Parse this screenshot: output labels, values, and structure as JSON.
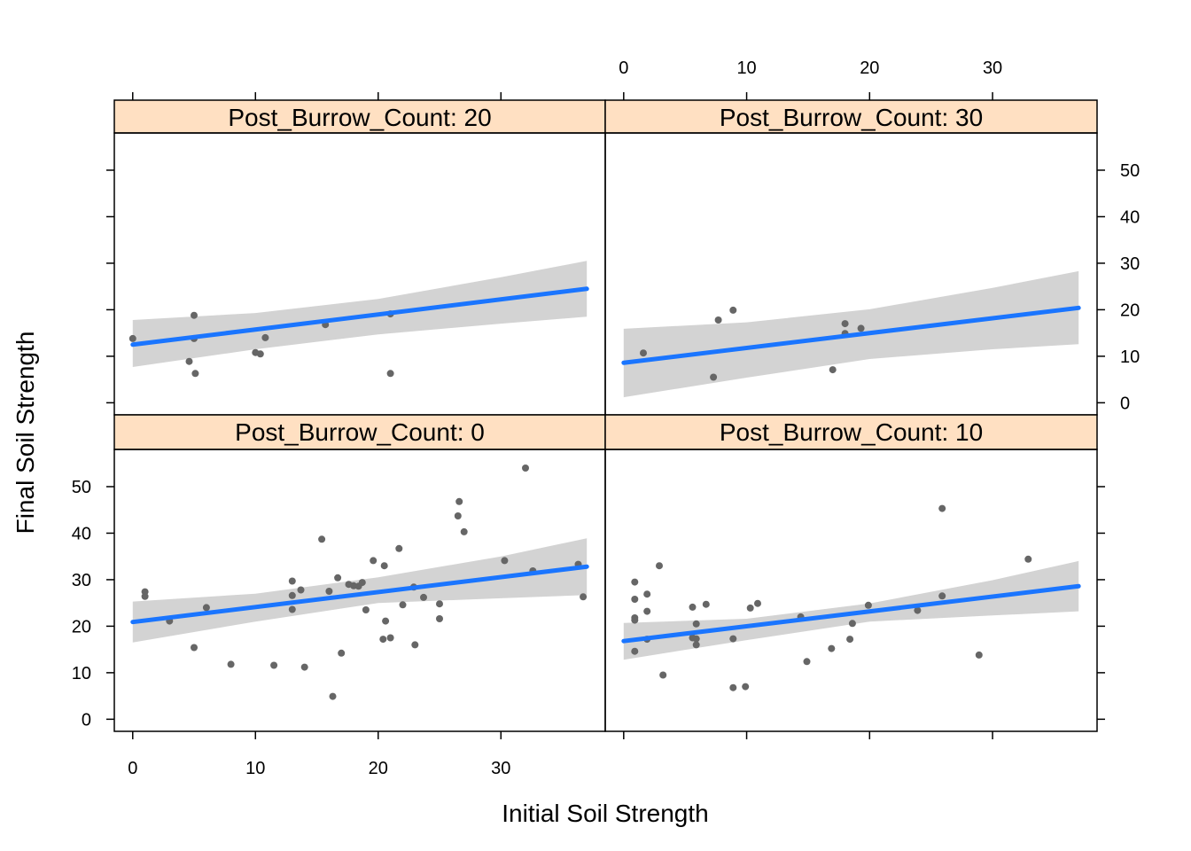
{
  "chart_data": {
    "type": "scatter",
    "xlabel": "Initial Soil Strength",
    "ylabel": "Final Soil Strength",
    "xlim": [
      -1.5,
      38.5
    ],
    "ylim": [
      -2.6,
      58
    ],
    "x_ticks": [
      0,
      10,
      20,
      30
    ],
    "y_ticks": [
      0,
      10,
      20,
      30,
      40,
      50
    ],
    "grid": false,
    "point_color": "#666666",
    "fit_color": "#1a75ff",
    "band_color": "#d3d3d3",
    "strip_color": "#ffe0c2",
    "panels": [
      {
        "strip_label": "Post_Burrow_Count: 20",
        "position": "top-left",
        "fit": {
          "x": [
            0,
            37
          ],
          "y": [
            12.5,
            24.5
          ]
        },
        "ci_lower": [
          [
            0,
            7.7
          ],
          [
            10,
            11.5
          ],
          [
            20,
            14.7
          ],
          [
            30,
            17.0
          ],
          [
            37,
            18.5
          ]
        ],
        "ci_upper": [
          [
            0,
            17.8
          ],
          [
            10,
            19.3
          ],
          [
            20,
            22.3
          ],
          [
            30,
            27.0
          ],
          [
            37,
            30.5
          ]
        ],
        "points": [
          [
            0,
            13.8
          ],
          [
            4.6,
            8.9
          ],
          [
            5,
            18.8
          ],
          [
            5,
            13.8
          ],
          [
            5.1,
            6.3
          ],
          [
            10,
            10.8
          ],
          [
            10.4,
            10.5
          ],
          [
            10.8,
            14.0
          ],
          [
            15.7,
            16.8
          ],
          [
            21,
            19.1
          ],
          [
            21,
            6.3
          ]
        ]
      },
      {
        "strip_label": "Post_Burrow_Count: 30",
        "position": "top-right",
        "fit": {
          "x": [
            0,
            37
          ],
          "y": [
            8.6,
            20.4
          ]
        },
        "ci_lower": [
          [
            0,
            1.2
          ],
          [
            10,
            5.4
          ],
          [
            20,
            9.4
          ],
          [
            30,
            11.5
          ],
          [
            37,
            12.6
          ]
        ],
        "ci_upper": [
          [
            0,
            15.9
          ],
          [
            10,
            17.3
          ],
          [
            20,
            20.1
          ],
          [
            30,
            24.7
          ],
          [
            37,
            28.3
          ]
        ],
        "points": [
          [
            1.6,
            10.7
          ],
          [
            7.3,
            5.5
          ],
          [
            7.7,
            17.8
          ],
          [
            8.9,
            19.9
          ],
          [
            17,
            7.1
          ],
          [
            18,
            17.0
          ],
          [
            18,
            14.9
          ],
          [
            19.3,
            16.0
          ]
        ]
      },
      {
        "strip_label": "Post_Burrow_Count: 0",
        "position": "bottom-left",
        "fit": {
          "x": [
            0,
            37
          ],
          "y": [
            20.9,
            32.8
          ]
        },
        "ci_lower": [
          [
            0,
            16.5
          ],
          [
            10,
            21.0
          ],
          [
            20,
            25.0
          ],
          [
            30,
            26.0
          ],
          [
            37,
            26.7
          ]
        ],
        "ci_upper": [
          [
            0,
            25.3
          ],
          [
            10,
            27.0
          ],
          [
            20,
            30.5
          ],
          [
            30,
            35.0
          ],
          [
            37,
            38.9
          ]
        ],
        "points": [
          [
            1,
            27.4
          ],
          [
            1,
            26.4
          ],
          [
            3,
            21.1
          ],
          [
            5,
            15.4
          ],
          [
            6,
            24.0
          ],
          [
            8,
            11.8
          ],
          [
            11.5,
            11.6
          ],
          [
            13,
            29.7
          ],
          [
            13,
            26.6
          ],
          [
            13,
            23.6
          ],
          [
            13.7,
            27.8
          ],
          [
            14,
            11.2
          ],
          [
            15.4,
            38.7
          ],
          [
            16,
            27.5
          ],
          [
            16.3,
            4.9
          ],
          [
            16.7,
            30.4
          ],
          [
            17,
            14.2
          ],
          [
            17.6,
            29.0
          ],
          [
            18,
            28.7
          ],
          [
            18.4,
            28.6
          ],
          [
            18.7,
            29.4
          ],
          [
            19,
            23.5
          ],
          [
            19.6,
            34.1
          ],
          [
            20.4,
            17.2
          ],
          [
            20.5,
            33.0
          ],
          [
            20.6,
            21.1
          ],
          [
            21,
            17.5
          ],
          [
            21.7,
            36.7
          ],
          [
            22,
            24.6
          ],
          [
            22.9,
            28.4
          ],
          [
            23,
            16.0
          ],
          [
            23.7,
            26.2
          ],
          [
            25,
            24.8
          ],
          [
            25,
            21.6
          ],
          [
            26.5,
            43.7
          ],
          [
            26.6,
            46.8
          ],
          [
            27,
            40.3
          ],
          [
            30.3,
            34.1
          ],
          [
            32,
            54.0
          ],
          [
            32.6,
            31.9
          ],
          [
            36.3,
            33.3
          ],
          [
            36.7,
            26.3
          ]
        ]
      },
      {
        "strip_label": "Post_Burrow_Count: 10",
        "position": "bottom-right",
        "fit": {
          "x": [
            0,
            37
          ],
          "y": [
            16.8,
            28.6
          ]
        },
        "ci_lower": [
          [
            0,
            12.8
          ],
          [
            10,
            17.0
          ],
          [
            20,
            21.0
          ],
          [
            30,
            22.3
          ],
          [
            37,
            23.2
          ]
        ],
        "ci_upper": [
          [
            0,
            20.7
          ],
          [
            10,
            21.6
          ],
          [
            20,
            24.9
          ],
          [
            30,
            29.9
          ],
          [
            37,
            34.0
          ]
        ],
        "points": [
          [
            0.9,
            29.5
          ],
          [
            0.9,
            25.8
          ],
          [
            0.9,
            21.8
          ],
          [
            0.9,
            21.3
          ],
          [
            0.9,
            14.6
          ],
          [
            1.9,
            26.9
          ],
          [
            1.9,
            23.2
          ],
          [
            1.9,
            17.2
          ],
          [
            2.9,
            33.0
          ],
          [
            3.2,
            9.5
          ],
          [
            5.6,
            24.1
          ],
          [
            5.6,
            17.5
          ],
          [
            5.9,
            20.5
          ],
          [
            5.9,
            17.3
          ],
          [
            5.9,
            16.0
          ],
          [
            6.7,
            24.7
          ],
          [
            8.9,
            17.3
          ],
          [
            8.9,
            6.8
          ],
          [
            9.9,
            7.0
          ],
          [
            10.3,
            23.9
          ],
          [
            10.9,
            24.9
          ],
          [
            14.4,
            22.0
          ],
          [
            14.9,
            12.4
          ],
          [
            16.9,
            15.2
          ],
          [
            18.4,
            17.2
          ],
          [
            18.6,
            20.6
          ],
          [
            19.9,
            24.5
          ],
          [
            23.9,
            23.4
          ],
          [
            25.9,
            45.3
          ],
          [
            25.9,
            26.5
          ],
          [
            28.9,
            13.8
          ],
          [
            32.9,
            34.4
          ]
        ]
      }
    ]
  }
}
